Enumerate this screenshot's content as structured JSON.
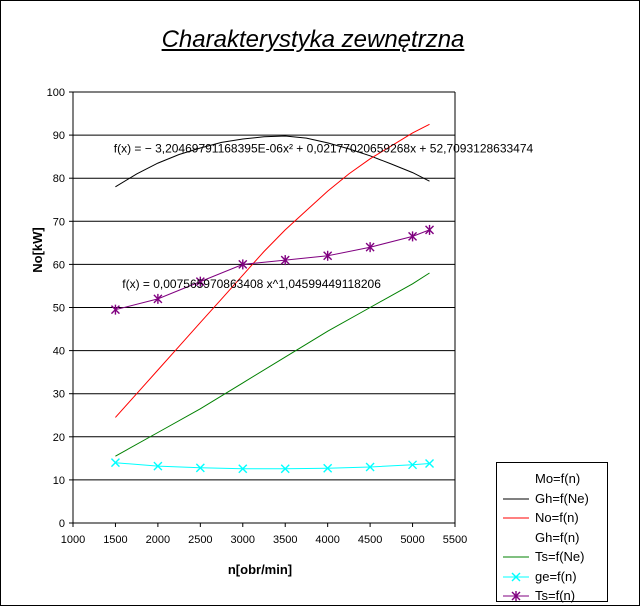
{
  "chart_data": {
    "type": "line",
    "title": "Charakterystyka zewnętrzna",
    "xlabel": "n[obr/min]",
    "ylabel": "No[kW]",
    "xlim": [
      1000,
      5500
    ],
    "ylim": [
      0,
      100
    ],
    "x_ticks": [
      "1000",
      "1500",
      "2000",
      "2500",
      "3000",
      "3500",
      "4000",
      "4500",
      "5000",
      "5500"
    ],
    "y_ticks": [
      "0",
      "10",
      "20",
      "30",
      "40",
      "50",
      "60",
      "70",
      "80",
      "90",
      "100"
    ],
    "grid": "horizontal",
    "legend_position": "bottom-right",
    "series": [
      {
        "name": "Mo=f(n)",
        "color": "#ffffff",
        "marker": "none",
        "points": []
      },
      {
        "name": "Gh=f(Ne)",
        "color": "#000000",
        "marker": "none",
        "points": [
          [
            1500,
            78
          ],
          [
            1750,
            81
          ],
          [
            2000,
            83.5
          ],
          [
            2250,
            85.5
          ],
          [
            2500,
            87
          ],
          [
            2750,
            88.3
          ],
          [
            3000,
            89.1
          ],
          [
            3250,
            89.6
          ],
          [
            3500,
            89.8
          ],
          [
            3750,
            89.3
          ],
          [
            4000,
            88.2
          ],
          [
            4250,
            86.8
          ],
          [
            4500,
            85.2
          ],
          [
            4750,
            83.3
          ],
          [
            5000,
            81.3
          ],
          [
            5200,
            79.3
          ]
        ]
      },
      {
        "name": "No=f(n)",
        "color": "#ff0000",
        "marker": "none",
        "points": [
          [
            1500,
            24.5
          ],
          [
            1750,
            30
          ],
          [
            2000,
            35.5
          ],
          [
            2250,
            41
          ],
          [
            2500,
            46.5
          ],
          [
            2750,
            52
          ],
          [
            3000,
            57.5
          ],
          [
            3250,
            63
          ],
          [
            3500,
            68
          ],
          [
            3750,
            72.5
          ],
          [
            4000,
            77
          ],
          [
            4250,
            81
          ],
          [
            4500,
            84.5
          ],
          [
            4750,
            87.5
          ],
          [
            5000,
            90.5
          ],
          [
            5200,
            92.5
          ]
        ]
      },
      {
        "name": "Gh=f(n)",
        "color": "#ffffff",
        "marker": "none",
        "points": []
      },
      {
        "name": "Ts=f(Ne)",
        "color": "#008000",
        "marker": "none",
        "points": [
          [
            1500,
            15.5
          ],
          [
            2000,
            21
          ],
          [
            2500,
            26.5
          ],
          [
            3000,
            32.5
          ],
          [
            3500,
            38.5
          ],
          [
            4000,
            44.5
          ],
          [
            4500,
            50
          ],
          [
            5000,
            55.5
          ],
          [
            5200,
            58
          ]
        ]
      },
      {
        "name": "ge=f(n)",
        "color": "#00ffff",
        "marker": "x",
        "points": [
          [
            1500,
            14
          ],
          [
            2000,
            13.2
          ],
          [
            2500,
            12.8
          ],
          [
            3000,
            12.6
          ],
          [
            3500,
            12.6
          ],
          [
            4000,
            12.7
          ],
          [
            4500,
            13
          ],
          [
            5000,
            13.5
          ],
          [
            5200,
            13.8
          ]
        ]
      },
      {
        "name": "Ts=f(n)",
        "color": "#800080",
        "marker": "star",
        "points": [
          [
            1500,
            49.5
          ],
          [
            2000,
            52
          ],
          [
            2500,
            56
          ],
          [
            3000,
            60
          ],
          [
            3500,
            61
          ],
          [
            4000,
            62
          ],
          [
            4500,
            64
          ],
          [
            5000,
            66.5
          ],
          [
            5200,
            68
          ]
        ]
      }
    ],
    "annotations": [
      {
        "text": "f(x) = − 3,20469791168395E-06x² + 0,0217702065926​8x + 52,7093128633474",
        "x": 1480,
        "y": 86
      },
      {
        "text": "f(x) = 0,007565970863408 x^1,04599449118206",
        "x": 1580,
        "y": 54.5
      }
    ]
  }
}
